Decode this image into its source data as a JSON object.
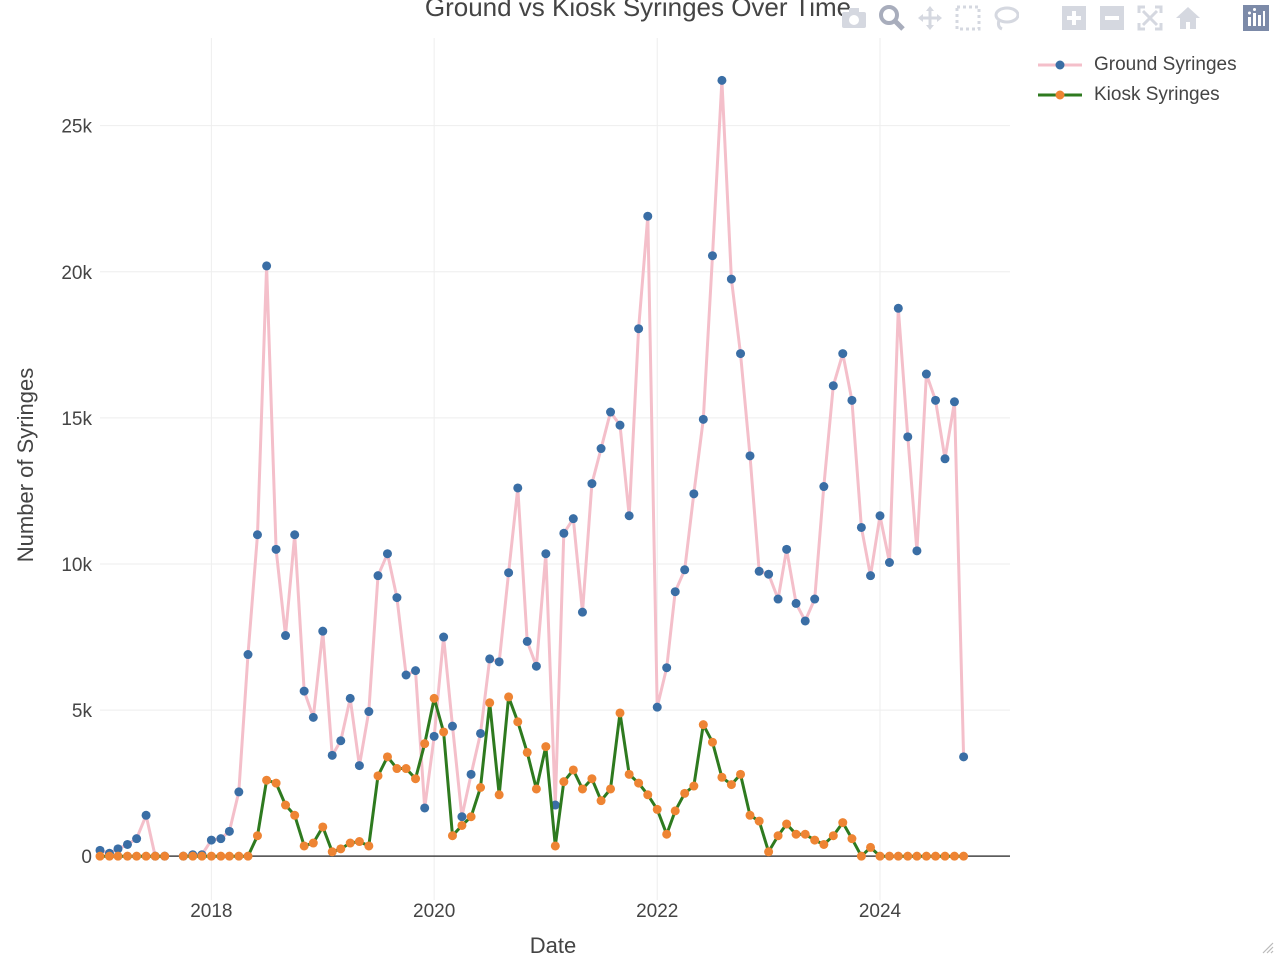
{
  "title": "Ground vs Kiosk Syringes Over Time",
  "modebar": {
    "buttons": [
      {
        "name": "camera-icon"
      },
      {
        "name": "zoom-icon"
      },
      {
        "name": "pan-icon"
      },
      {
        "name": "box-select-icon"
      },
      {
        "name": "lasso-select-icon"
      },
      {
        "name": "zoom-in-icon"
      },
      {
        "name": "zoom-out-icon"
      },
      {
        "name": "autoscale-icon"
      },
      {
        "name": "reset-axes-icon"
      },
      {
        "name": "plotly-logo-icon"
      }
    ]
  },
  "legend": {
    "items": [
      {
        "label": "Ground Syringes",
        "line_color": "#f4bfca",
        "marker_color": "#3a6ea5"
      },
      {
        "label": "Kiosk Syringes",
        "line_color": "#2e7a1f",
        "marker_color": "#ee8433"
      }
    ]
  },
  "chart_data": {
    "type": "line",
    "title": "Ground vs Kiosk Syringes Over Time",
    "xlabel": "Date",
    "ylabel": "Number of Syringes",
    "xlim": [
      "2016-11-01",
      "2025-03-01"
    ],
    "ylim": [
      -1500,
      28000
    ],
    "xticks": [
      {
        "date": "2018-01-01",
        "label": "2018"
      },
      {
        "date": "2020-01-01",
        "label": "2020"
      },
      {
        "date": "2022-01-01",
        "label": "2022"
      },
      {
        "date": "2024-01-01",
        "label": "2024"
      }
    ],
    "yticks": [
      {
        "value": 0,
        "label": "0"
      },
      {
        "value": 5000,
        "label": "5k"
      },
      {
        "value": 10000,
        "label": "10k"
      },
      {
        "value": 15000,
        "label": "15k"
      },
      {
        "value": 20000,
        "label": "20k"
      },
      {
        "value": 25000,
        "label": "25k"
      }
    ],
    "grid": true,
    "legend_position": "top-right",
    "series": [
      {
        "name": "Ground Syringes",
        "line_color": "#f4bfca",
        "marker_color": "#3a6ea5",
        "points": [
          [
            "2017-01",
            200
          ],
          [
            "2017-02",
            100
          ],
          [
            "2017-03",
            250
          ],
          [
            "2017-04",
            400
          ],
          [
            "2017-05",
            600
          ],
          [
            "2017-06",
            1400
          ],
          [
            "2017-07",
            0
          ],
          [
            "2017-08",
            0
          ],
          [
            "2017-09",
            null
          ],
          [
            "2017-10",
            0
          ],
          [
            "2017-11",
            50
          ],
          [
            "2017-12",
            50
          ],
          [
            "2018-01",
            550
          ],
          [
            "2018-02",
            600
          ],
          [
            "2018-03",
            850
          ],
          [
            "2018-04",
            2200
          ],
          [
            "2018-05",
            6900
          ],
          [
            "2018-06",
            11000
          ],
          [
            "2018-07",
            20200
          ],
          [
            "2018-08",
            10500
          ],
          [
            "2018-09",
            7550
          ],
          [
            "2018-10",
            11000
          ],
          [
            "2018-11",
            5650
          ],
          [
            "2018-12",
            4750
          ],
          [
            "2019-01",
            7700
          ],
          [
            "2019-02",
            3450
          ],
          [
            "2019-03",
            3950
          ],
          [
            "2019-04",
            5400
          ],
          [
            "2019-05",
            3100
          ],
          [
            "2019-06",
            4950
          ],
          [
            "2019-07",
            9600
          ],
          [
            "2019-08",
            10350
          ],
          [
            "2019-09",
            8850
          ],
          [
            "2019-10",
            6200
          ],
          [
            "2019-11",
            6350
          ],
          [
            "2019-12",
            1650
          ],
          [
            "2020-01",
            4100
          ],
          [
            "2020-02",
            7500
          ],
          [
            "2020-03",
            4450
          ],
          [
            "2020-04",
            1350
          ],
          [
            "2020-05",
            2800
          ],
          [
            "2020-06",
            4200
          ],
          [
            "2020-07",
            6750
          ],
          [
            "2020-08",
            6650
          ],
          [
            "2020-09",
            9700
          ],
          [
            "2020-10",
            12600
          ],
          [
            "2020-11",
            7350
          ],
          [
            "2020-12",
            6500
          ],
          [
            "2021-01",
            10350
          ],
          [
            "2021-02",
            1750
          ],
          [
            "2021-03",
            11050
          ],
          [
            "2021-04",
            11550
          ],
          [
            "2021-05",
            8350
          ],
          [
            "2021-06",
            12750
          ],
          [
            "2021-07",
            13950
          ],
          [
            "2021-08",
            15200
          ],
          [
            "2021-09",
            14750
          ],
          [
            "2021-10",
            11650
          ],
          [
            "2021-11",
            18050
          ],
          [
            "2021-12",
            21900
          ],
          [
            "2022-01",
            5100
          ],
          [
            "2022-02",
            6450
          ],
          [
            "2022-03",
            9050
          ],
          [
            "2022-04",
            9800
          ],
          [
            "2022-05",
            12400
          ],
          [
            "2022-06",
            14950
          ],
          [
            "2022-07",
            20550
          ],
          [
            "2022-08",
            26550
          ],
          [
            "2022-09",
            19750
          ],
          [
            "2022-10",
            17200
          ],
          [
            "2022-11",
            13700
          ],
          [
            "2022-12",
            9750
          ],
          [
            "2023-01",
            9650
          ],
          [
            "2023-02",
            8800
          ],
          [
            "2023-03",
            10500
          ],
          [
            "2023-04",
            8650
          ],
          [
            "2023-05",
            8050
          ],
          [
            "2023-06",
            8800
          ],
          [
            "2023-07",
            12650
          ],
          [
            "2023-08",
            16100
          ],
          [
            "2023-09",
            17200
          ],
          [
            "2023-10",
            15600
          ],
          [
            "2023-11",
            11250
          ],
          [
            "2023-12",
            9600
          ],
          [
            "2024-01",
            11650
          ],
          [
            "2024-02",
            10050
          ],
          [
            "2024-03",
            18750
          ],
          [
            "2024-04",
            14350
          ],
          [
            "2024-05",
            10450
          ],
          [
            "2024-06",
            16500
          ],
          [
            "2024-07",
            15600
          ],
          [
            "2024-08",
            13600
          ],
          [
            "2024-09",
            15550
          ],
          [
            "2024-10",
            3400
          ]
        ]
      },
      {
        "name": "Kiosk Syringes",
        "line_color": "#2e7a1f",
        "marker_color": "#ee8433",
        "points": [
          [
            "2017-01",
            0
          ],
          [
            "2017-02",
            0
          ],
          [
            "2017-03",
            0
          ],
          [
            "2017-04",
            0
          ],
          [
            "2017-05",
            0
          ],
          [
            "2017-06",
            0
          ],
          [
            "2017-07",
            0
          ],
          [
            "2017-08",
            0
          ],
          [
            "2017-09",
            null
          ],
          [
            "2017-10",
            0
          ],
          [
            "2017-11",
            0
          ],
          [
            "2017-12",
            0
          ],
          [
            "2018-01",
            0
          ],
          [
            "2018-02",
            0
          ],
          [
            "2018-03",
            0
          ],
          [
            "2018-04",
            0
          ],
          [
            "2018-05",
            0
          ],
          [
            "2018-06",
            700
          ],
          [
            "2018-07",
            2600
          ],
          [
            "2018-08",
            2500
          ],
          [
            "2018-09",
            1750
          ],
          [
            "2018-10",
            1400
          ],
          [
            "2018-11",
            350
          ],
          [
            "2018-12",
            450
          ],
          [
            "2019-01",
            1000
          ],
          [
            "2019-02",
            150
          ],
          [
            "2019-03",
            250
          ],
          [
            "2019-04",
            450
          ],
          [
            "2019-05",
            500
          ],
          [
            "2019-06",
            350
          ],
          [
            "2019-07",
            2750
          ],
          [
            "2019-08",
            3400
          ],
          [
            "2019-09",
            3000
          ],
          [
            "2019-10",
            3000
          ],
          [
            "2019-11",
            2650
          ],
          [
            "2019-12",
            3850
          ],
          [
            "2020-01",
            5400
          ],
          [
            "2020-02",
            4250
          ],
          [
            "2020-03",
            700
          ],
          [
            "2020-04",
            1050
          ],
          [
            "2020-05",
            1350
          ],
          [
            "2020-06",
            2350
          ],
          [
            "2020-07",
            5250
          ],
          [
            "2020-08",
            2100
          ],
          [
            "2020-09",
            5450
          ],
          [
            "2020-10",
            4600
          ],
          [
            "2020-11",
            3550
          ],
          [
            "2020-12",
            2300
          ],
          [
            "2021-01",
            3750
          ],
          [
            "2021-02",
            350
          ],
          [
            "2021-03",
            2550
          ],
          [
            "2021-04",
            2950
          ],
          [
            "2021-05",
            2300
          ],
          [
            "2021-06",
            2650
          ],
          [
            "2021-07",
            1900
          ],
          [
            "2021-08",
            2300
          ],
          [
            "2021-09",
            4900
          ],
          [
            "2021-10",
            2800
          ],
          [
            "2021-11",
            2500
          ],
          [
            "2021-12",
            2100
          ],
          [
            "2022-01",
            1600
          ],
          [
            "2022-02",
            750
          ],
          [
            "2022-03",
            1550
          ],
          [
            "2022-04",
            2150
          ],
          [
            "2022-05",
            2400
          ],
          [
            "2022-06",
            4500
          ],
          [
            "2022-07",
            3900
          ],
          [
            "2022-08",
            2700
          ],
          [
            "2022-09",
            2450
          ],
          [
            "2022-10",
            2800
          ],
          [
            "2022-11",
            1400
          ],
          [
            "2022-12",
            1200
          ],
          [
            "2023-01",
            150
          ],
          [
            "2023-02",
            700
          ],
          [
            "2023-03",
            1100
          ],
          [
            "2023-04",
            750
          ],
          [
            "2023-05",
            750
          ],
          [
            "2023-06",
            550
          ],
          [
            "2023-07",
            400
          ],
          [
            "2023-08",
            700
          ],
          [
            "2023-09",
            1150
          ],
          [
            "2023-10",
            600
          ],
          [
            "2023-11",
            0
          ],
          [
            "2023-12",
            300
          ],
          [
            "2024-01",
            0
          ],
          [
            "2024-02",
            0
          ],
          [
            "2024-03",
            0
          ],
          [
            "2024-04",
            0
          ],
          [
            "2024-05",
            0
          ],
          [
            "2024-06",
            0
          ],
          [
            "2024-07",
            0
          ],
          [
            "2024-08",
            0
          ],
          [
            "2024-09",
            0
          ],
          [
            "2024-10",
            0
          ]
        ]
      }
    ]
  }
}
